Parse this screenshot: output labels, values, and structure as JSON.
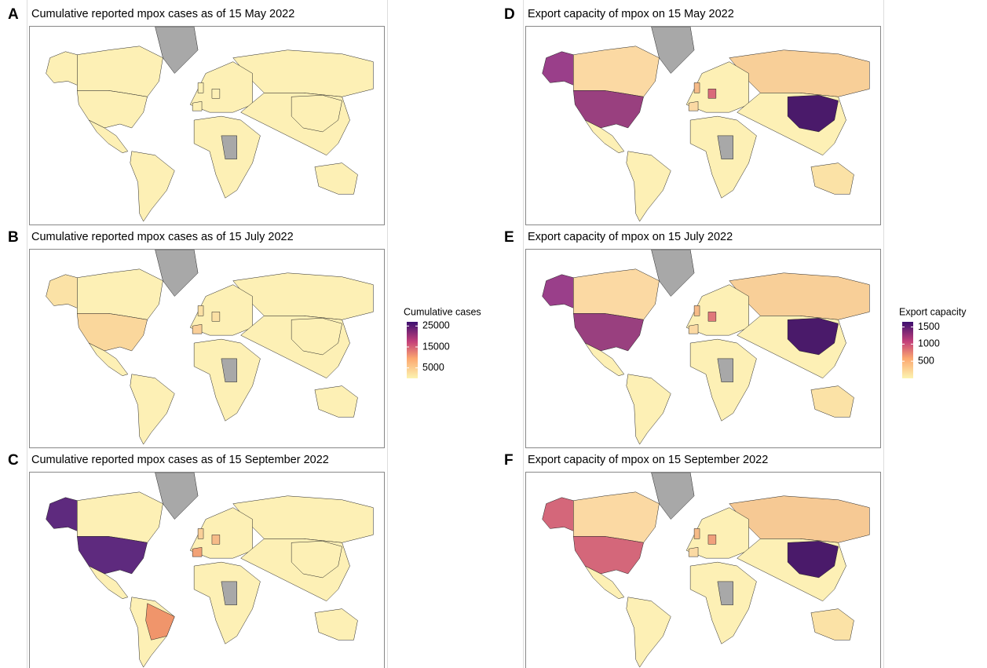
{
  "panels": [
    {
      "letter": "A",
      "title": "Cumulative reported mpox cases as of 15 May 2022"
    },
    {
      "letter": "B",
      "title": "Cumulative reported mpox cases as of 15 July 2022"
    },
    {
      "letter": "C",
      "title": "Cumulative reported mpox cases as of 15 September 2022"
    },
    {
      "letter": "D",
      "title": "Export capacity of mpox on 15 May 2022"
    },
    {
      "letter": "E",
      "title": "Export capacity of mpox on 15 July 2022"
    },
    {
      "letter": "F",
      "title": "Export capacity of mpox on 15 September 2022"
    }
  ],
  "legends": [
    {
      "title": "Cumulative cases",
      "lim": [
        0,
        27000
      ],
      "ticks": [
        5000,
        15000,
        25000
      ]
    },
    {
      "title": "Export capacity",
      "lim": [
        0,
        1650
      ],
      "ticks": [
        500,
        1000,
        1500
      ]
    }
  ]
}
